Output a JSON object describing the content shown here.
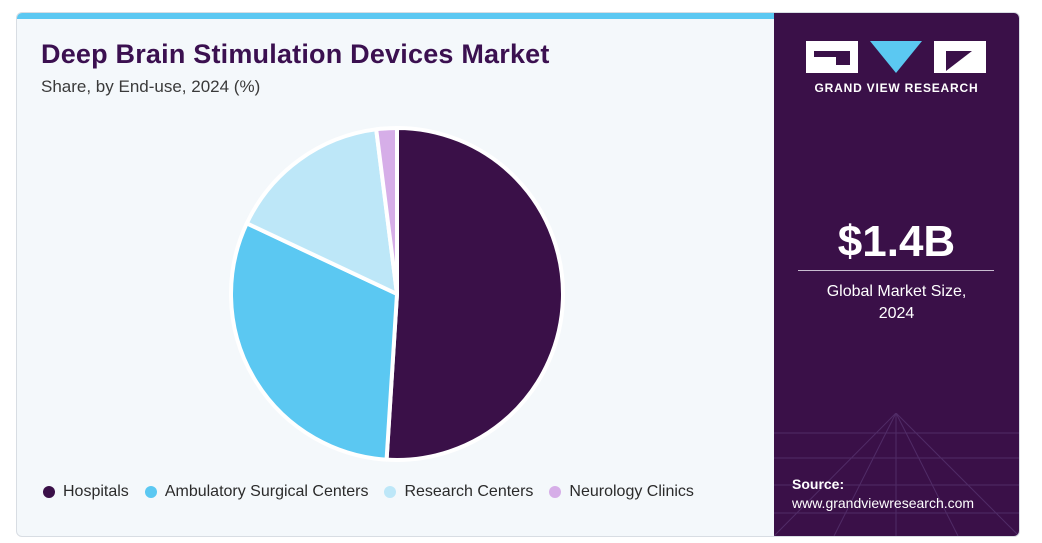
{
  "header": {
    "title": "Deep Brain Stimulation Devices Market",
    "subtitle": "Share, by End-use, 2024 (%)"
  },
  "chart_data": {
    "type": "pie",
    "title": "Deep Brain Stimulation Devices Market",
    "subtitle": "Share, by End-use, 2024 (%)",
    "categories": [
      "Hospitals",
      "Ambulatory Surgical Centers",
      "Research Centers",
      "Neurology Clinics"
    ],
    "values": [
      51,
      31,
      16,
      2
    ],
    "colors": [
      "#3a1048",
      "#5bc8f2",
      "#bde7f8",
      "#d6aee8"
    ],
    "start_angle_deg": 0,
    "direction": "clockwise",
    "legend_position": "bottom"
  },
  "legend": {
    "items": [
      {
        "label": "Hospitals",
        "color": "#3a1048"
      },
      {
        "label": "Ambulatory Surgical Centers",
        "color": "#5bc8f2"
      },
      {
        "label": "Research Centers",
        "color": "#bde7f8"
      },
      {
        "label": "Neurology Clinics",
        "color": "#d6aee8"
      }
    ]
  },
  "sidebar": {
    "brand": "GRAND VIEW RESEARCH",
    "market_value": "$1.4B",
    "market_label_line1": "Global Market Size,",
    "market_label_line2": "2024",
    "source_label": "Source:",
    "source_url": "www.grandviewresearch.com"
  },
  "colors": {
    "accent_bar": "#5bc8f2",
    "panel_bg": "#3a1048",
    "title": "#3b1050"
  }
}
